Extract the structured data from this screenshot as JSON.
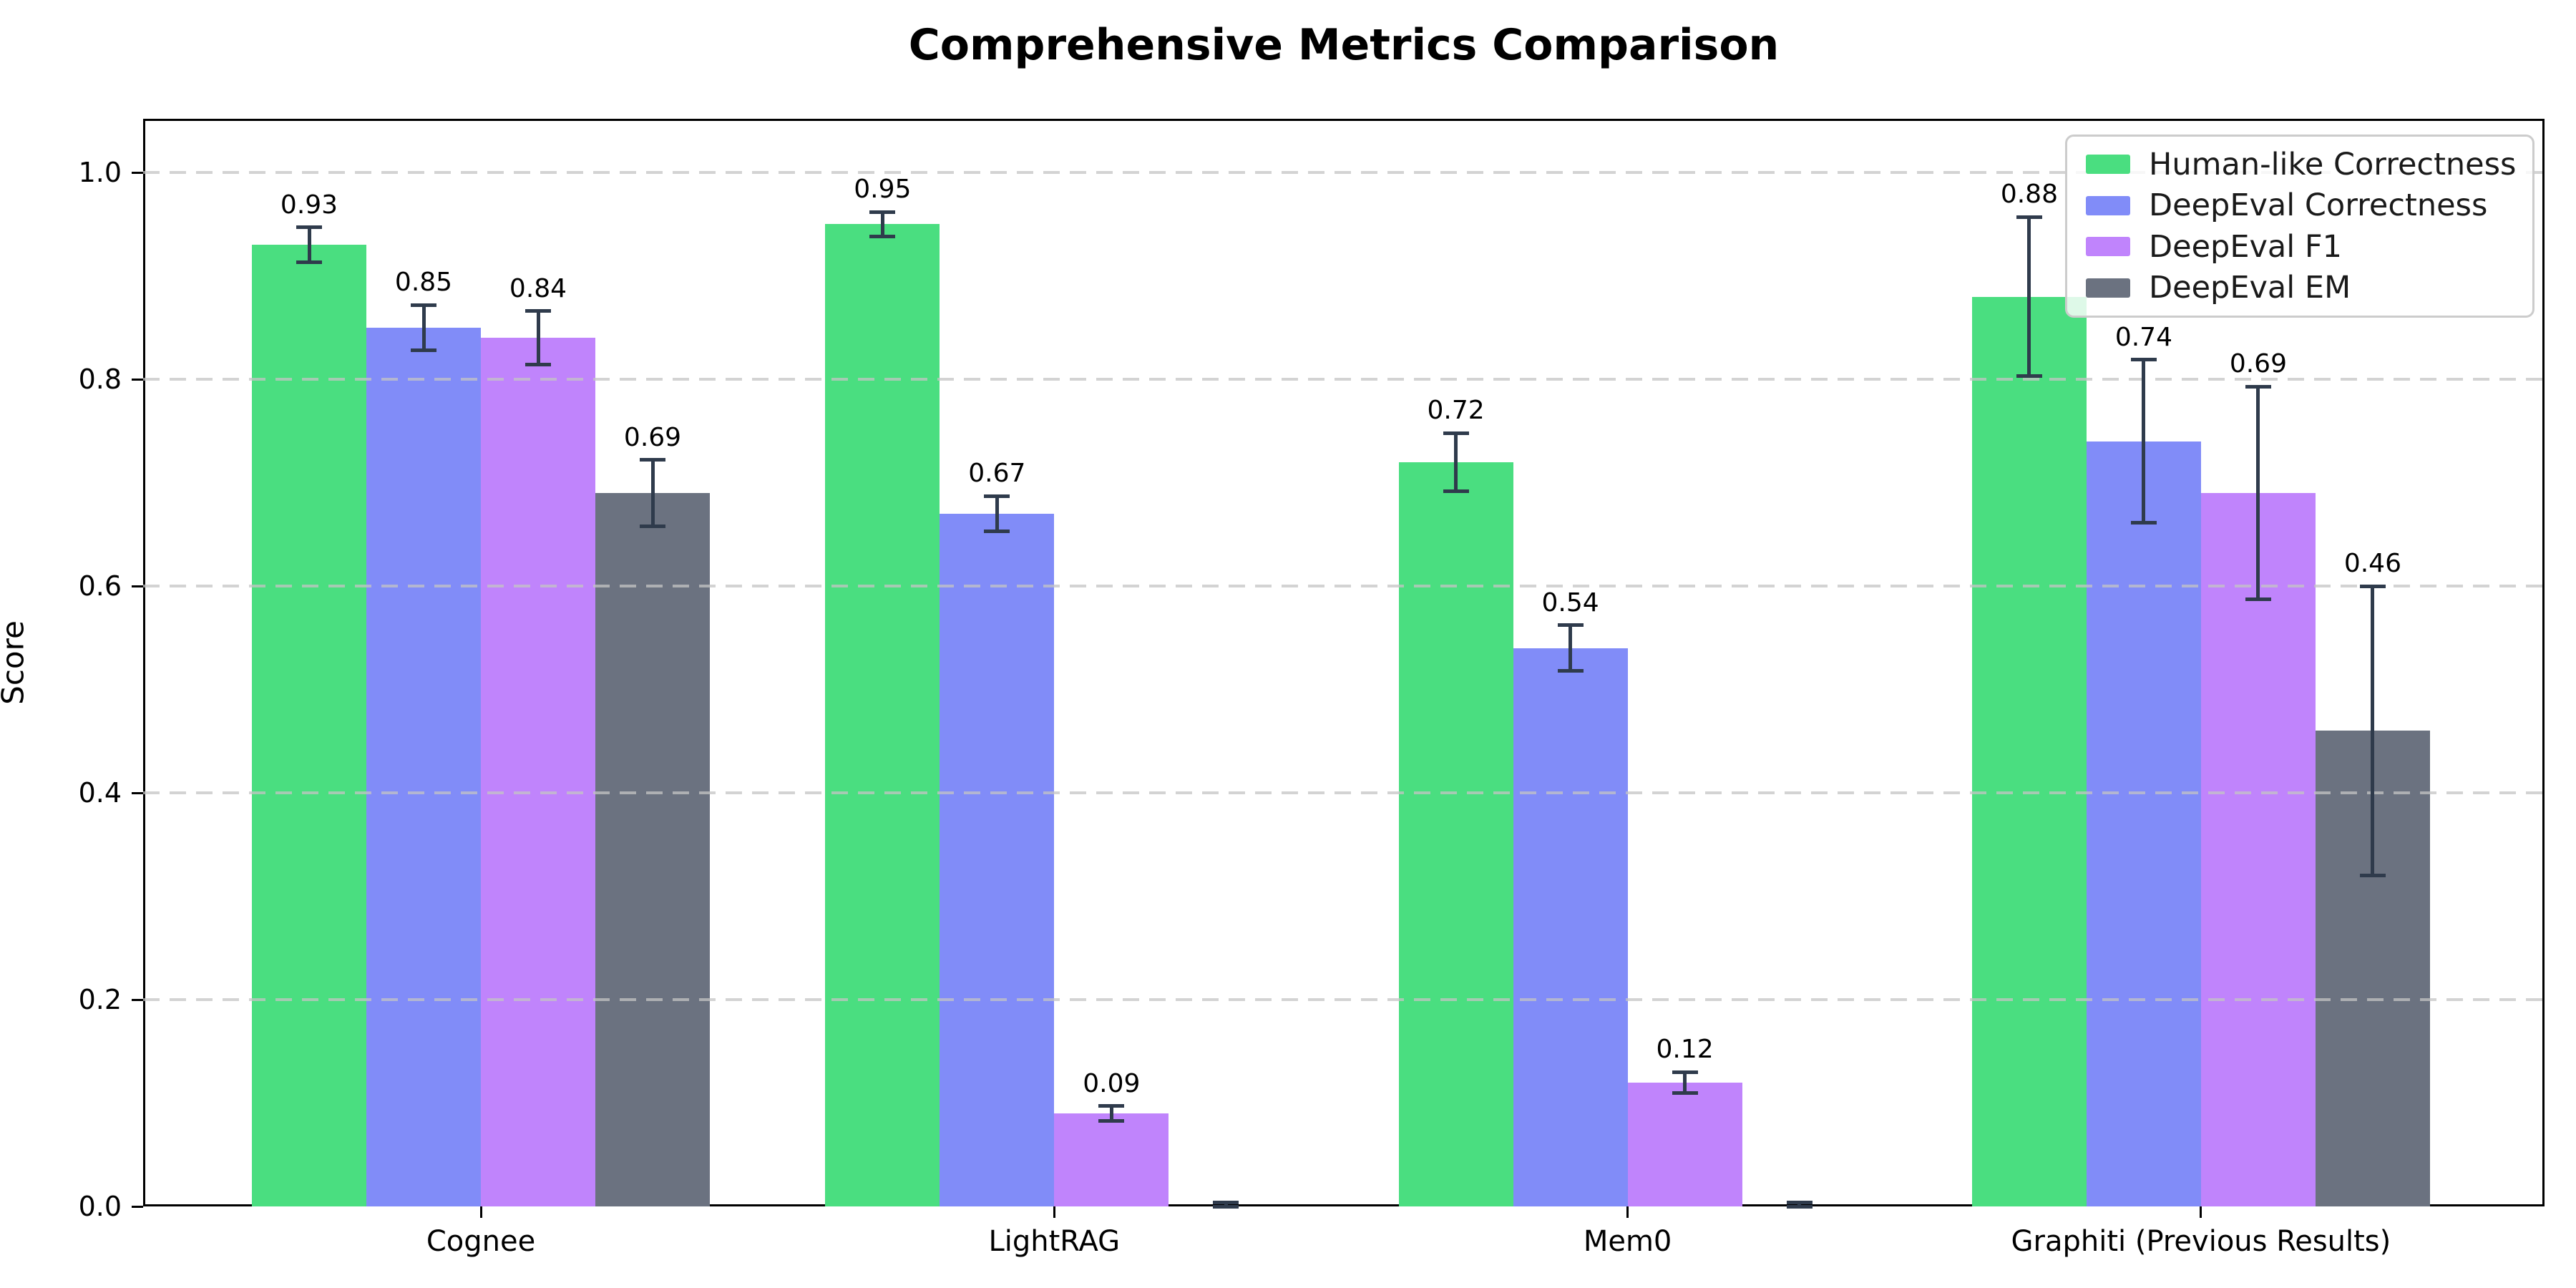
{
  "chart_data": {
    "type": "bar",
    "title": "Comprehensive Metrics Comparison",
    "xlabel": "",
    "ylabel": "Score",
    "ylim": [
      0,
      1.052
    ],
    "yticks": [
      0.0,
      0.2,
      0.4,
      0.6,
      0.8,
      1.0
    ],
    "ytick_labels": [
      "0.0",
      "0.2",
      "0.4",
      "0.6",
      "0.8",
      "1.0"
    ],
    "grid": "horizontal-dashed",
    "grid_color": "#c4c4c4",
    "legend_position": "upper-right",
    "error_bar_color": "#2f3b4c",
    "categories": [
      "Cognee",
      "LightRAG",
      "Mem0",
      "Graphiti (Previous Results)"
    ],
    "series": [
      {
        "name": "Human-like Correctness",
        "color": "#4ade80",
        "values": [
          0.93,
          0.95,
          0.72,
          0.88
        ],
        "errors": [
          0.017,
          0.012,
          0.028,
          0.077
        ],
        "labels": [
          "0.93",
          "0.95",
          "0.72",
          "0.88"
        ]
      },
      {
        "name": "DeepEval Correctness",
        "color": "#818cf8",
        "values": [
          0.85,
          0.67,
          0.54,
          0.74
        ],
        "errors": [
          0.022,
          0.017,
          0.022,
          0.079
        ],
        "labels": [
          "0.85",
          "0.67",
          "0.54",
          "0.74"
        ]
      },
      {
        "name": "DeepEval F1",
        "color": "#c084fc",
        "values": [
          0.84,
          0.09,
          0.12,
          0.69
        ],
        "errors": [
          0.026,
          0.007,
          0.01,
          0.103
        ],
        "labels": [
          "0.84",
          "0.09",
          "0.12",
          "0.69"
        ]
      },
      {
        "name": "DeepEval EM",
        "color": "#6b7280",
        "values": [
          0.69,
          0.0,
          0.0,
          0.46
        ],
        "errors": [
          0.032,
          0.004,
          0.004,
          0.14
        ],
        "labels": [
          "0.69",
          "",
          "",
          "0.46"
        ]
      }
    ]
  }
}
